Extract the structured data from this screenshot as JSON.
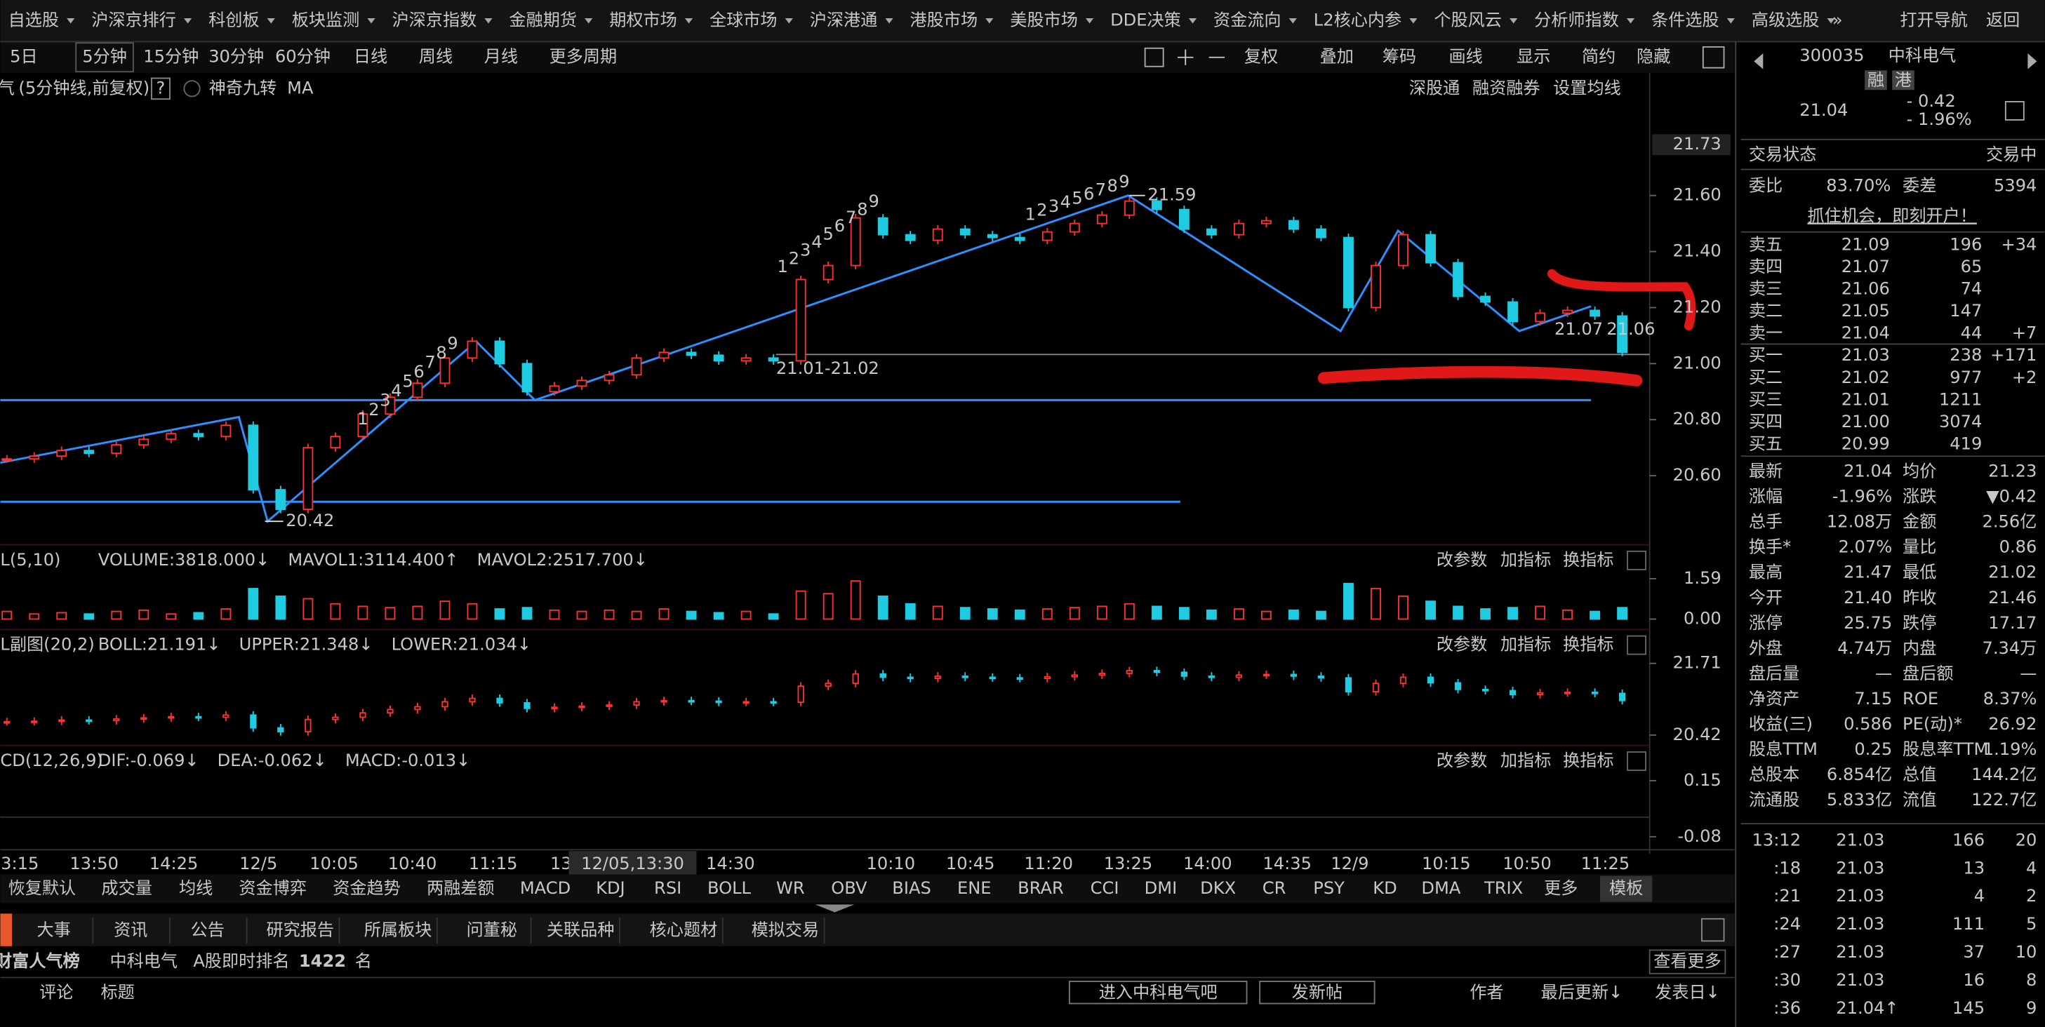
{
  "menu": [
    "自选股",
    "沪深京排行",
    "科创板",
    "板块监测",
    "沪深京指数",
    "金融期货",
    "期权市场",
    "全球市场",
    "沪深港通",
    "港股市场",
    "美股市场",
    "DDE决策",
    "资金流向",
    "L2核心内参",
    "个股风云",
    "分析师指数",
    "条件选股",
    "高级选股"
  ],
  "menu_right": [
    "打开导航",
    "返回"
  ],
  "periods": [
    "5日",
    "5分钟",
    "15分钟",
    "30分钟",
    "60分钟",
    "日线",
    "周线",
    "月线",
    "更多周期"
  ],
  "tools": [
    "复权",
    "叠加",
    "筹码",
    "画线",
    "显示",
    "简约",
    "隐藏"
  ],
  "chart_header": {
    "stock_cut": "气",
    "mode": "(5分钟线,前复权)",
    "help": "?",
    "items": [
      "神奇九转",
      "MA"
    ],
    "right": [
      "深股通",
      "融资融券",
      "设置均线"
    ]
  },
  "main_chart": {
    "ylim": [
      20.4,
      21.75
    ],
    "top_label": "21.73",
    "yticks": [
      {
        "value": 21.6,
        "label": "21.60"
      },
      {
        "value": 21.4,
        "label": "21.40"
      },
      {
        "value": 21.2,
        "label": "21.20"
      },
      {
        "value": 21,
        "label": "21.00"
      },
      {
        "value": 20.8,
        "label": "20.80"
      },
      {
        "value": 20.6,
        "label": "20.60"
      }
    ],
    "closes": [
      20.66,
      20.67,
      20.69,
      20.68,
      20.71,
      20.73,
      20.75,
      20.74,
      20.78,
      20.55,
      20.48,
      20.7,
      20.74,
      20.82,
      20.88,
      20.93,
      21.02,
      21.08,
      21.0,
      20.9,
      20.92,
      20.94,
      20.96,
      21.02,
      21.04,
      21.03,
      21.01,
      21.02,
      21.01,
      21.3,
      21.35,
      21.52,
      21.46,
      21.44,
      21.48,
      21.46,
      21.45,
      21.44,
      21.47,
      21.5,
      21.53,
      21.58,
      21.55,
      21.48,
      21.46,
      21.5,
      21.51,
      21.48,
      21.45,
      21.2,
      21.35,
      21.46,
      21.36,
      21.24,
      21.22,
      21.15,
      21.18,
      21.19,
      21.17,
      21.04
    ],
    "annotations": {
      "high": "21.59",
      "low": "20.42",
      "range": "21.01-21.02",
      "mark1": "21.07",
      "mark2": "21.06"
    },
    "nine_turn": [
      [
        "1",
        "2",
        "3",
        "4",
        "5",
        "6",
        "7",
        "8",
        "9"
      ],
      [
        "1",
        "2",
        "3",
        "4",
        "5",
        "6",
        "7",
        "8",
        "9"
      ],
      [
        "1",
        "2",
        "3",
        "4",
        "5",
        "6",
        "7",
        "8",
        "9"
      ]
    ]
  },
  "volume_panel": {
    "name": "L(5,10)",
    "items": [
      "VOLUME:3818.000↓",
      "MAVOL1:3114.400↑",
      "MAVOL2:2517.700↓"
    ],
    "ylim": [
      0,
      1.59
    ],
    "yticks": [
      1.59,
      {
        "value": 0,
        "label": "0.00"
      }
    ],
    "values": [
      0.3,
      0.2,
      0.25,
      0.2,
      0.3,
      0.35,
      0.2,
      0.25,
      0.4,
      1.2,
      0.9,
      0.8,
      0.6,
      0.5,
      0.45,
      0.5,
      0.7,
      0.6,
      0.4,
      0.45,
      0.35,
      0.3,
      0.35,
      0.3,
      0.4,
      0.3,
      0.25,
      0.3,
      0.2,
      1.1,
      1.0,
      1.5,
      0.9,
      0.6,
      0.5,
      0.45,
      0.4,
      0.35,
      0.4,
      0.45,
      0.5,
      0.6,
      0.5,
      0.45,
      0.35,
      0.4,
      0.3,
      0.35,
      0.3,
      1.4,
      1.2,
      0.9,
      0.7,
      0.5,
      0.4,
      0.45,
      0.5,
      0.35,
      0.3,
      0.45
    ]
  },
  "boll_panel": {
    "name": "L副图(20,2)",
    "items": [
      "BOLL:21.191↓",
      "UPPER:21.348↓",
      "LOWER:21.034↓"
    ],
    "ylim": [
      20.42,
      21.71
    ],
    "yticks": [
      21.71,
      20.42
    ]
  },
  "macd_panel": {
    "name": "CD(12,26,9)",
    "items": [
      "DIF:-0.069↓",
      "DEA:-0.062↓",
      "MACD:-0.013↓"
    ],
    "ylim": [
      -0.08,
      0.15
    ],
    "yticks": [
      0.15,
      -0.08
    ]
  },
  "panel_buttons": [
    "改参数",
    "加指标",
    "换指标"
  ],
  "time_axis": {
    "labels": [
      "3:15",
      "13:50",
      "14:25",
      "12/5",
      "10:05",
      "10:40",
      "11:15",
      "13",
      "14:30",
      "10:10",
      "10:45",
      "11:20",
      "13:25",
      "14:00",
      "14:35",
      "12/9",
      "10:15",
      "10:50",
      "11:25"
    ],
    "cursor": "12/05,13:30"
  },
  "indicator_tabs": [
    "恢复默认",
    "成交量",
    "均线",
    "资金博弈",
    "资金趋势",
    "两融差额",
    "MACD",
    "KDJ",
    "RSI",
    "BOLL",
    "WR",
    "OBV",
    "BIAS",
    "ENE",
    "BRAR",
    "CCI",
    "DMI",
    "DKX",
    "CR",
    "PSY",
    "KD",
    "DMA",
    "TRIX",
    "更多",
    "模板"
  ],
  "bottom_tabs": [
    "大事",
    "资讯",
    "公告",
    "研究报告",
    "所属板块",
    "问董秘",
    "关联品种",
    "核心题材",
    "模拟交易"
  ],
  "info_row": {
    "board": "财富人气榜",
    "stock": "中科电气",
    "rank_label": "A股即时排名",
    "rank": "1422",
    "unit": "名",
    "more": "查看更多"
  },
  "table_header": {
    "comment": "评论",
    "title": "标题",
    "enter": "进入中科电气吧",
    "post": "发新帖",
    "author": "作者",
    "updated": "最后更新↓",
    "date": "发表日↓"
  },
  "quote": {
    "code": "300035",
    "name": "中科电气",
    "tags": [
      "融",
      "港"
    ],
    "price": "21.04",
    "change": "- 0.42",
    "pct": "- 1.96%",
    "status_label": "交易状态",
    "status": "交易中",
    "wb_label": "委比",
    "wb": "83.70%",
    "wc_label": "委差",
    "wc": "5394",
    "banner": "抓住机会，即刻开户！",
    "asks": [
      [
        "卖五",
        "21.09",
        "196",
        "+34"
      ],
      [
        "卖四",
        "21.07",
        "65"
      ],
      [
        "卖三",
        "21.06",
        "74"
      ],
      [
        "卖二",
        "21.05",
        "147"
      ],
      [
        "卖一",
        "21.04",
        "44",
        "+7"
      ]
    ],
    "bids": [
      [
        "买一",
        "21.03",
        "238",
        "+171"
      ],
      [
        "买二",
        "21.02",
        "977",
        "+2"
      ],
      [
        "买三",
        "21.01",
        "1211"
      ],
      [
        "买四",
        "21.00",
        "3074"
      ],
      [
        "买五",
        "20.99",
        "419"
      ]
    ],
    "stats": [
      {
        "cells": [
          "最新",
          "21.04",
          "均价",
          "21.23"
        ],
        "colors": [
          "#1ee61e",
          "#1ee61e"
        ]
      },
      {
        "cells": [
          "涨幅",
          "-1.96%",
          "涨跌",
          "▼0.42"
        ],
        "colors": [
          "#1ee61e",
          "#1ee61e"
        ]
      },
      {
        "cells": [
          "总手",
          "12.08万",
          "金额",
          "2.56亿"
        ],
        "colors": [
          "#e6e6e6",
          "#2fc8f0"
        ]
      },
      {
        "cells": [
          "换手*",
          "2.07%",
          "量比",
          "0.86"
        ],
        "colors": [
          "#e6e6e6",
          "#e6e6e6"
        ]
      },
      {
        "cells": [
          "最高",
          "21.47",
          "最低",
          "21.02"
        ],
        "colors": [
          "#ff3232",
          "#1ee61e"
        ]
      },
      {
        "cells": [
          "今开",
          "21.40",
          "昨收",
          "21.46"
        ],
        "colors": [
          "#1ee61e",
          "#e6e6e6"
        ]
      },
      {
        "cells": [
          "涨停",
          "25.75",
          "跌停",
          "17.17"
        ],
        "colors": [
          "#ff3232",
          "#1ee61e"
        ]
      },
      {
        "cells": [
          "外盘",
          "4.74万",
          "内盘",
          "7.34万"
        ],
        "colors": [
          "#ff3232",
          "#1ee61e"
        ]
      },
      {
        "cells": [
          "盘后量",
          "—",
          "盘后额",
          "—"
        ],
        "colors": [
          "#e6e6e6",
          "#e6e6e6"
        ]
      },
      {
        "cells": [
          "净资产",
          "7.15",
          "ROE",
          "8.37%"
        ],
        "colors": [
          "#e6e6e6",
          "#e6e6e6"
        ]
      },
      {
        "cells": [
          "收益(三)",
          "0.586",
          "PE(动)*",
          "26.92"
        ],
        "colors": [
          "#e6e6e6",
          "#e6e6e6"
        ]
      },
      {
        "cells": [
          "股息TTM",
          "0.25",
          "股息率TTM",
          "1.19%"
        ],
        "colors": [
          "#e6e6e6",
          "#e6e6e6"
        ]
      },
      {
        "cells": [
          "总股本",
          "6.854亿",
          "总值",
          "144.2亿"
        ],
        "colors": [
          "#e6e6e6",
          "#e6e6e6"
        ]
      },
      {
        "cells": [
          "流通股",
          "5.833亿",
          "流值",
          "122.7亿"
        ],
        "colors": [
          "#e6e6e6",
          "#e6e6e6"
        ]
      }
    ],
    "ticks": [
      [
        "13:12",
        "21.03",
        "166",
        "20"
      ],
      [
        ":18",
        "21.03",
        "13",
        "4"
      ],
      [
        ":21",
        "21.03",
        "4",
        "2"
      ],
      [
        ":24",
        "21.03",
        "111",
        "5"
      ],
      [
        ":27",
        "21.03",
        "37",
        "10"
      ],
      [
        ":30",
        "21.03",
        "16",
        "8"
      ],
      [
        ":36",
        "21.04↑",
        "145",
        "9"
      ]
    ],
    "tick_colors": [
      "#1ee61e",
      "#ff3232",
      "#ff3232",
      "#ff3232",
      "#ff3232",
      "#ff3232",
      "#ff3232"
    ]
  }
}
